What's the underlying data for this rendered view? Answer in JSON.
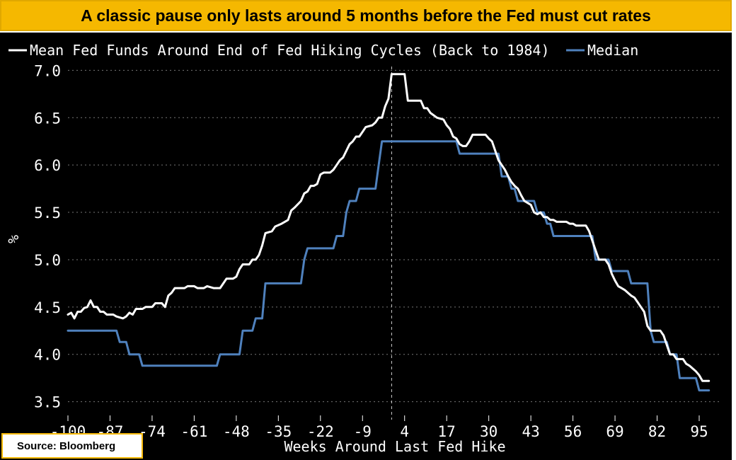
{
  "header": {
    "title": "A classic pause only lasts around 5 months before the Fed must cut rates"
  },
  "source": {
    "label": "Source: Bloomberg"
  },
  "colors": {
    "banner": "#f5b800",
    "background": "#000000",
    "mean_line": "#ffffff",
    "median_line": "#4f81bd",
    "grid": "#777777"
  },
  "chart_data": {
    "type": "line",
    "title": "",
    "xlabel": "Weeks Around Last Fed Hike",
    "ylabel": "%",
    "xlim": [
      -100,
      102
    ],
    "ylim": [
      3.4,
      7.1
    ],
    "x_ticks": [
      -100,
      -87,
      -74,
      -61,
      -48,
      -35,
      -22,
      -9,
      4,
      17,
      30,
      43,
      56,
      69,
      82,
      95
    ],
    "x_tick_labels": [
      "-100",
      "-87",
      "-74",
      "-61",
      "-48",
      "-35",
      "-22",
      "-9",
      "4",
      "17",
      "30",
      "43",
      "56",
      "69",
      "82",
      "95"
    ],
    "y_ticks": [
      3.5,
      4.0,
      4.5,
      5.0,
      5.5,
      6.0,
      6.5,
      7.0
    ],
    "y_tick_labels": [
      "3.5",
      "4.0",
      "4.5",
      "5.0",
      "5.5",
      "6.0",
      "6.5",
      "7.0"
    ],
    "grid": "horizontal dotted",
    "legend_position": "top-left",
    "vertical_marker_x": 0,
    "series": [
      {
        "name": "Mean Fed Funds Around End of Fed Hiking Cycles (Back to 1984)",
        "color": "#ffffff",
        "points": [
          [
            -100,
            4.42
          ],
          [
            -99,
            4.44
          ],
          [
            -98,
            4.38
          ],
          [
            -97,
            4.45
          ],
          [
            -96,
            4.45
          ],
          [
            -95,
            4.49
          ],
          [
            -94,
            4.5
          ],
          [
            -93,
            4.57
          ],
          [
            -92,
            4.5
          ],
          [
            -91,
            4.5
          ],
          [
            -90,
            4.45
          ],
          [
            -89,
            4.45
          ],
          [
            -88,
            4.42
          ],
          [
            -86,
            4.42
          ],
          [
            -85,
            4.4
          ],
          [
            -83,
            4.38
          ],
          [
            -82,
            4.4
          ],
          [
            -81,
            4.44
          ],
          [
            -80,
            4.42
          ],
          [
            -79,
            4.48
          ],
          [
            -77,
            4.48
          ],
          [
            -76,
            4.5
          ],
          [
            -74,
            4.5
          ],
          [
            -73,
            4.54
          ],
          [
            -71,
            4.54
          ],
          [
            -70,
            4.5
          ],
          [
            -69,
            4.62
          ],
          [
            -68,
            4.65
          ],
          [
            -67,
            4.7
          ],
          [
            -64,
            4.7
          ],
          [
            -63,
            4.72
          ],
          [
            -61,
            4.72
          ],
          [
            -60,
            4.7
          ],
          [
            -58,
            4.7
          ],
          [
            -57,
            4.72
          ],
          [
            -55,
            4.7
          ],
          [
            -53,
            4.7
          ],
          [
            -52,
            4.75
          ],
          [
            -51,
            4.8
          ],
          [
            -49,
            4.8
          ],
          [
            -48,
            4.82
          ],
          [
            -47,
            4.9
          ],
          [
            -46,
            4.95
          ],
          [
            -44,
            4.95
          ],
          [
            -43,
            5.0
          ],
          [
            -42,
            5.0
          ],
          [
            -41,
            5.05
          ],
          [
            -40,
            5.15
          ],
          [
            -39,
            5.28
          ],
          [
            -37,
            5.3
          ],
          [
            -36,
            5.35
          ],
          [
            -34,
            5.38
          ],
          [
            -33,
            5.4
          ],
          [
            -32,
            5.42
          ],
          [
            -31,
            5.52
          ],
          [
            -30,
            5.55
          ],
          [
            -28,
            5.62
          ],
          [
            -27,
            5.7
          ],
          [
            -26,
            5.72
          ],
          [
            -25,
            5.78
          ],
          [
            -24,
            5.78
          ],
          [
            -23,
            5.8
          ],
          [
            -22,
            5.9
          ],
          [
            -21,
            5.92
          ],
          [
            -19,
            5.92
          ],
          [
            -18,
            5.95
          ],
          [
            -17,
            6.0
          ],
          [
            -16,
            6.05
          ],
          [
            -15,
            6.08
          ],
          [
            -14,
            6.15
          ],
          [
            -13,
            6.22
          ],
          [
            -12,
            6.25
          ],
          [
            -11,
            6.3
          ],
          [
            -10,
            6.3
          ],
          [
            -9,
            6.35
          ],
          [
            -8,
            6.4
          ],
          [
            -6,
            6.42
          ],
          [
            -5,
            6.45
          ],
          [
            -4,
            6.5
          ],
          [
            -3,
            6.5
          ],
          [
            -2,
            6.62
          ],
          [
            -1,
            6.7
          ],
          [
            0,
            6.96
          ],
          [
            4,
            6.96
          ],
          [
            5,
            6.68
          ],
          [
            9,
            6.68
          ],
          [
            10,
            6.6
          ],
          [
            11,
            6.6
          ],
          [
            12,
            6.55
          ],
          [
            14,
            6.5
          ],
          [
            16,
            6.48
          ],
          [
            17,
            6.42
          ],
          [
            18,
            6.38
          ],
          [
            19,
            6.3
          ],
          [
            20,
            6.28
          ],
          [
            21,
            6.22
          ],
          [
            22,
            6.2
          ],
          [
            23,
            6.2
          ],
          [
            24,
            6.25
          ],
          [
            25,
            6.32
          ],
          [
            29,
            6.32
          ],
          [
            30,
            6.28
          ],
          [
            31,
            6.25
          ],
          [
            32,
            6.15
          ],
          [
            33,
            6.05
          ],
          [
            34,
            6.0
          ],
          [
            35,
            5.95
          ],
          [
            36,
            5.88
          ],
          [
            37,
            5.82
          ],
          [
            38,
            5.78
          ],
          [
            39,
            5.75
          ],
          [
            40,
            5.68
          ],
          [
            41,
            5.62
          ],
          [
            42,
            5.6
          ],
          [
            43,
            5.58
          ],
          [
            44,
            5.5
          ],
          [
            45,
            5.48
          ],
          [
            46,
            5.5
          ],
          [
            47,
            5.45
          ],
          [
            48,
            5.45
          ],
          [
            49,
            5.42
          ],
          [
            50,
            5.42
          ],
          [
            51,
            5.4
          ],
          [
            54,
            5.4
          ],
          [
            55,
            5.38
          ],
          [
            56,
            5.38
          ],
          [
            57,
            5.36
          ],
          [
            60,
            5.36
          ],
          [
            61,
            5.3
          ],
          [
            62,
            5.2
          ],
          [
            63,
            5.1
          ],
          [
            64,
            5.0
          ],
          [
            66,
            5.0
          ],
          [
            67,
            4.95
          ],
          [
            68,
            4.85
          ],
          [
            69,
            4.78
          ],
          [
            70,
            4.72
          ],
          [
            71,
            4.7
          ],
          [
            72,
            4.68
          ],
          [
            73,
            4.65
          ],
          [
            74,
            4.62
          ],
          [
            75,
            4.6
          ],
          [
            76,
            4.55
          ],
          [
            77,
            4.5
          ],
          [
            78,
            4.45
          ],
          [
            79,
            4.3
          ],
          [
            80,
            4.25
          ],
          [
            83,
            4.25
          ],
          [
            84,
            4.2
          ],
          [
            85,
            4.1
          ],
          [
            86,
            4.0
          ],
          [
            87,
            4.0
          ],
          [
            88,
            3.95
          ],
          [
            90,
            3.95
          ],
          [
            91,
            3.9
          ],
          [
            92,
            3.88
          ],
          [
            93,
            3.85
          ],
          [
            94,
            3.82
          ],
          [
            95,
            3.78
          ],
          [
            96,
            3.72
          ],
          [
            98,
            3.72
          ]
        ]
      },
      {
        "name": "Median",
        "color": "#4f81bd",
        "points": [
          [
            -100,
            4.25
          ],
          [
            -85,
            4.25
          ],
          [
            -84,
            4.13
          ],
          [
            -82,
            4.13
          ],
          [
            -81,
            4.0
          ],
          [
            -78,
            4.0
          ],
          [
            -77,
            3.88
          ],
          [
            -54,
            3.88
          ],
          [
            -53,
            4.0
          ],
          [
            -47,
            4.0
          ],
          [
            -46,
            4.25
          ],
          [
            -43,
            4.25
          ],
          [
            -42,
            4.38
          ],
          [
            -40,
            4.38
          ],
          [
            -39,
            4.75
          ],
          [
            -28,
            4.75
          ],
          [
            -27,
            5.0
          ],
          [
            -26,
            5.12
          ],
          [
            -18,
            5.12
          ],
          [
            -17,
            5.25
          ],
          [
            -15,
            5.25
          ],
          [
            -14,
            5.5
          ],
          [
            -13,
            5.62
          ],
          [
            -11,
            5.62
          ],
          [
            -10,
            5.75
          ],
          [
            -5,
            5.75
          ],
          [
            -4,
            6.0
          ],
          [
            -3,
            6.25
          ],
          [
            20,
            6.25
          ],
          [
            21,
            6.12
          ],
          [
            33,
            6.12
          ],
          [
            34,
            5.88
          ],
          [
            36,
            5.88
          ],
          [
            37,
            5.75
          ],
          [
            38,
            5.75
          ],
          [
            39,
            5.62
          ],
          [
            44,
            5.62
          ],
          [
            45,
            5.5
          ],
          [
            47,
            5.5
          ],
          [
            48,
            5.38
          ],
          [
            49,
            5.38
          ],
          [
            50,
            5.25
          ],
          [
            62,
            5.25
          ],
          [
            63,
            5.0
          ],
          [
            67,
            5.0
          ],
          [
            68,
            4.88
          ],
          [
            73,
            4.88
          ],
          [
            74,
            4.75
          ],
          [
            79,
            4.75
          ],
          [
            80,
            4.25
          ],
          [
            81,
            4.13
          ],
          [
            85,
            4.13
          ],
          [
            86,
            4.0
          ],
          [
            88,
            4.0
          ],
          [
            89,
            3.75
          ],
          [
            94,
            3.75
          ],
          [
            95,
            3.62
          ],
          [
            98,
            3.62
          ]
        ]
      }
    ]
  }
}
